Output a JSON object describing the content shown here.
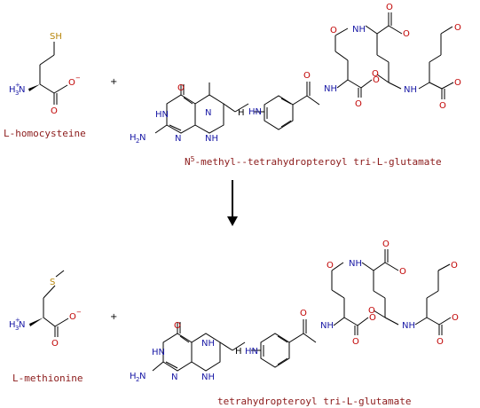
{
  "colors": {
    "label": "#8b1a1a",
    "N": "#1a1aa6",
    "O": "#c00000",
    "S": "#b8860b",
    "bond": "#000000"
  },
  "reactants": {
    "homocysteine": "L-homocysteine",
    "thf_prefix": "N",
    "thf_sup": "5",
    "thf_rest": "-methyl--tetrahydropteroyl tri-L-glutamate"
  },
  "operator": "+",
  "products": {
    "methionine": "L-methionine",
    "thf": "tetrahydropteroyl tri-L-glutamate"
  },
  "atoms": {
    "SH": "SH",
    "S": "S",
    "O": "O",
    "Ominus": "O",
    "minus": "−",
    "NH3": "H",
    "NH3_sub": "3",
    "NH3_N": "N",
    "plus_charge": "+",
    "NH": "NH",
    "HN": "HN",
    "N": "N",
    "H2N": "H",
    "H2N_sub": "2",
    "H2N_N": "N",
    "H": "H"
  }
}
